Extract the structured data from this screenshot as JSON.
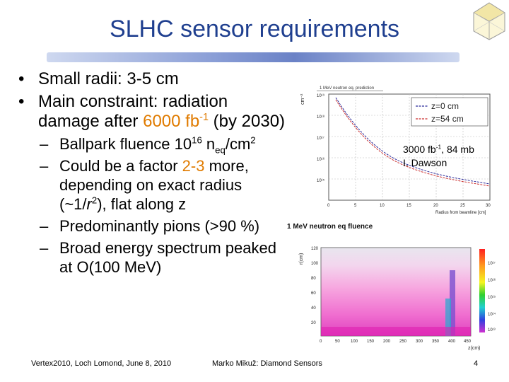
{
  "title": "SLHC sensor requirements",
  "bullets": {
    "b1": "Small radii: 3-5 cm",
    "b2_a": "Main constraint: radiation damage after ",
    "b2_value": "6000",
    "b2_unit": " fb",
    "b2_sup": "-1",
    "b2_b": " (by 2030)",
    "s1_a": "Ballpark fluence 10",
    "s1_sup": "16",
    "s1_b": " n",
    "s1_sub": "eq",
    "s1_c": "/cm",
    "s1_sup2": "2",
    "s2_a": "Could be a factor ",
    "s2_value": "2-3",
    "s2_b": " more, depending on exact radius (~1/",
    "s2_r": "r",
    "s2_sup": "2",
    "s2_c": "), flat along z",
    "s3": "Predominantly pions (>90 %)",
    "s4": "Broad energy spectrum peaked at O(100 MeV)"
  },
  "plot1": {
    "header": "1 MeV neutron eq. prediction",
    "ylabel": "cm⁻²",
    "y_ticks": [
      "10¹⁹",
      "10¹⁸",
      "10¹⁷",
      "10¹⁶",
      "10¹⁵"
    ],
    "x_ticks": [
      "0",
      "5",
      "10",
      "15",
      "20",
      "25",
      "30"
    ],
    "xlabel": "Radius from beamline [cm]",
    "legend": [
      {
        "label": "z=0 cm",
        "color": "#2b2b9a"
      },
      {
        "label": "z=54 cm",
        "color": "#cc3030"
      }
    ]
  },
  "credit": {
    "line1_a": "3000 fb",
    "line1_sup": "-1",
    "line1_b": ", 84 mb",
    "line2": "I. Dawson"
  },
  "plot2": {
    "title": "1 MeV neutron eq fluence",
    "ylabel": "r(cm)",
    "y_ticks": [
      "120",
      "100",
      "80",
      "60",
      "40",
      "20"
    ],
    "x_ticks": [
      "0",
      "50",
      "100",
      "150",
      "200",
      "250",
      "300",
      "350",
      "400",
      "450"
    ],
    "xlabel": "z(cm)",
    "scale_ticks": [
      "10¹⁷",
      "10¹⁶",
      "10¹⁵",
      "10¹⁴",
      "10¹³"
    ]
  },
  "footer": {
    "left": "Vertex2010, Loch Lomond, June 8, 2010",
    "center": "Marko Mikuž: Diamond Sensors",
    "page": "4"
  }
}
